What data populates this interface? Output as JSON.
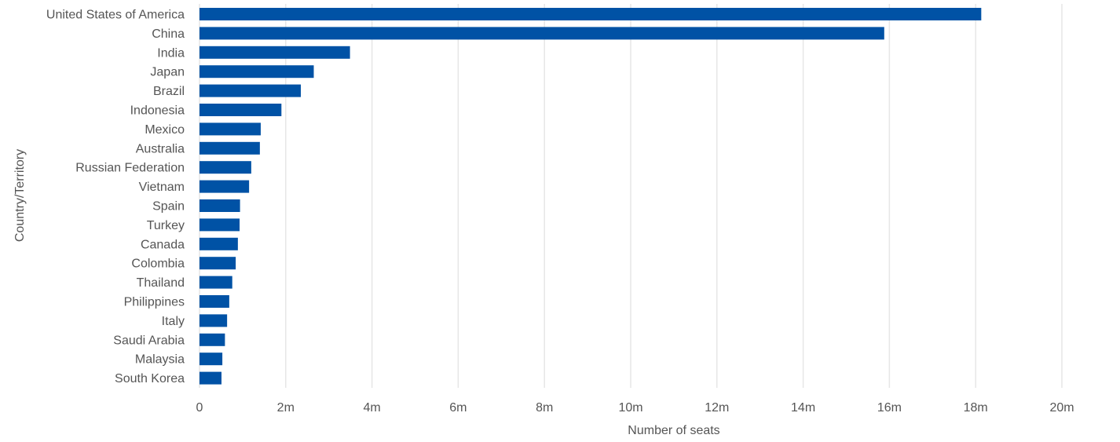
{
  "chart_data": {
    "type": "bar",
    "orientation": "horizontal",
    "categories": [
      "United States of America",
      "China",
      "India",
      "Japan",
      "Brazil",
      "Indonesia",
      "Mexico",
      "Australia",
      "Russian Federation",
      "Vietnam",
      "Spain",
      "Turkey",
      "Canada",
      "Colombia",
      "Thailand",
      "Philippines",
      "Italy",
      "Saudi Arabia",
      "Malaysia",
      "South Korea"
    ],
    "values": [
      18130000,
      15880000,
      3490000,
      2650000,
      2350000,
      1900000,
      1420000,
      1400000,
      1200000,
      1150000,
      940000,
      930000,
      890000,
      840000,
      760000,
      690000,
      640000,
      590000,
      530000,
      510000
    ],
    "xlabel": "Number of seats",
    "ylabel": "Country/Territory",
    "xlim": [
      0,
      20000000
    ],
    "xticks": [
      0,
      2000000,
      4000000,
      6000000,
      8000000,
      10000000,
      12000000,
      14000000,
      16000000,
      18000000,
      20000000
    ],
    "xtick_labels": [
      "0",
      "2m",
      "4m",
      "6m",
      "8m",
      "10m",
      "12m",
      "14m",
      "16m",
      "18m",
      "20m"
    ],
    "grid": "vertical",
    "bar_color": "#0052a5"
  }
}
